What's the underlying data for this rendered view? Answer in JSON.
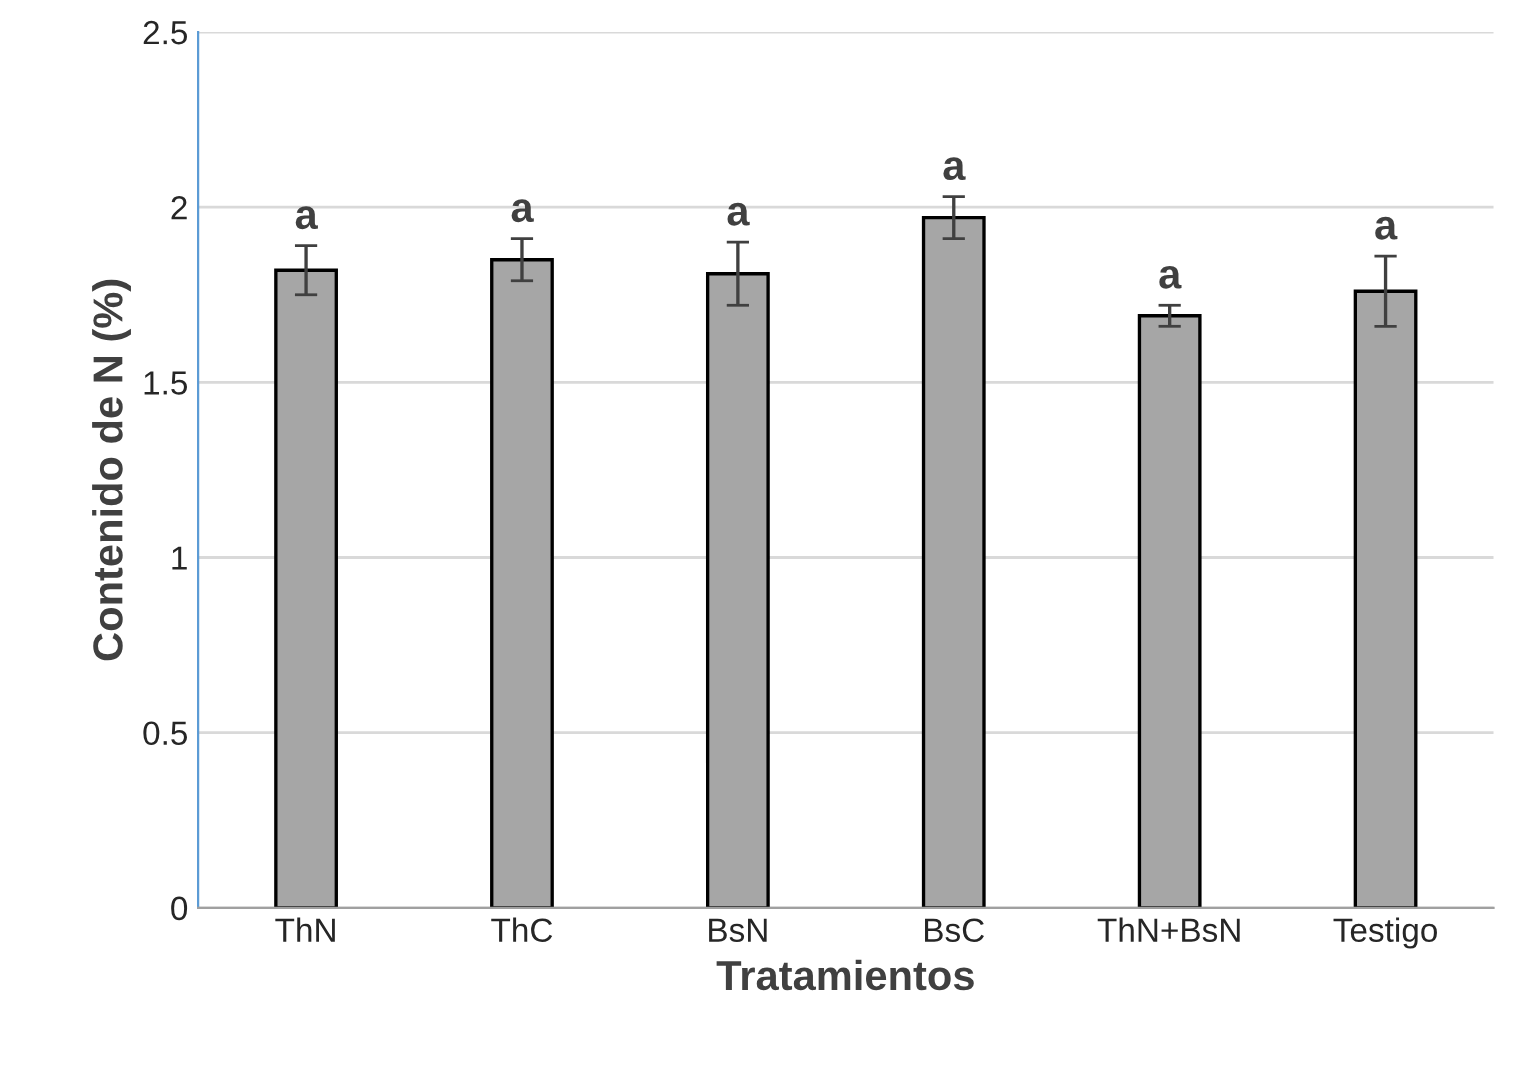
{
  "chart_data": {
    "type": "bar",
    "xlabel": "Tratamientos",
    "ylabel": "Contenido de N (%)",
    "categories": [
      "ThN",
      "ThC",
      "BsN",
      "BsC",
      "ThN+BsN",
      "Testigo"
    ],
    "values": [
      1.82,
      1.85,
      1.81,
      1.97,
      1.69,
      1.76
    ],
    "errors": [
      0.07,
      0.06,
      0.09,
      0.06,
      0.03,
      0.1
    ],
    "color": "#a6a6a6",
    "ylim": [
      0,
      2.5
    ],
    "yticks": [
      0,
      0.5,
      1,
      1.5,
      2,
      2.5
    ],
    "grid": "y",
    "annotations": [
      "a",
      "a",
      "a",
      "a",
      "a",
      "a"
    ]
  }
}
